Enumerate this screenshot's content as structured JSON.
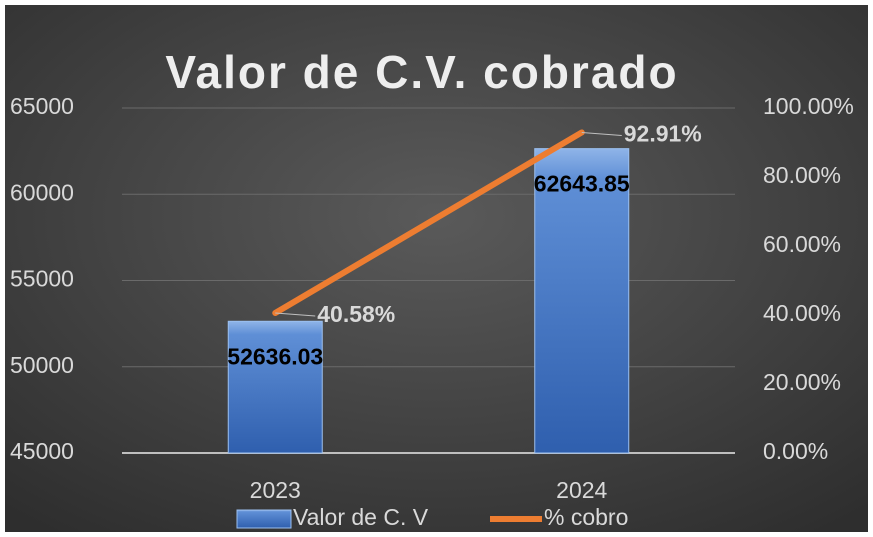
{
  "chart_data": {
    "type": "bar",
    "title": "Valor de C.V. cobrado",
    "categories": [
      "2023",
      "2024"
    ],
    "series": [
      {
        "name": "Valor de C. V",
        "type": "bar",
        "color": "#4f7fc9",
        "values": [
          52636.03,
          62643.85
        ]
      },
      {
        "name": "% cobro",
        "type": "line",
        "axis": "y2",
        "color": "#ed7d31",
        "values": [
          40.58,
          92.91
        ],
        "value_labels": [
          "40.58%",
          "92.91%"
        ]
      }
    ],
    "ylim": [
      45000,
      65000
    ],
    "yticks": [
      45000,
      50000,
      55000,
      60000,
      65000
    ],
    "y2lim": [
      0,
      100
    ],
    "y2ticks": [
      {
        "value": 0,
        "label": "0.00%"
      },
      {
        "value": 20,
        "label": "20.00%"
      },
      {
        "value": 40,
        "label": "40.00%"
      },
      {
        "value": 60,
        "label": "60.00%"
      },
      {
        "value": 80,
        "label": "80.00%"
      },
      {
        "value": 100,
        "label": "100.00%"
      }
    ],
    "grid": true,
    "legend": "bottom"
  }
}
